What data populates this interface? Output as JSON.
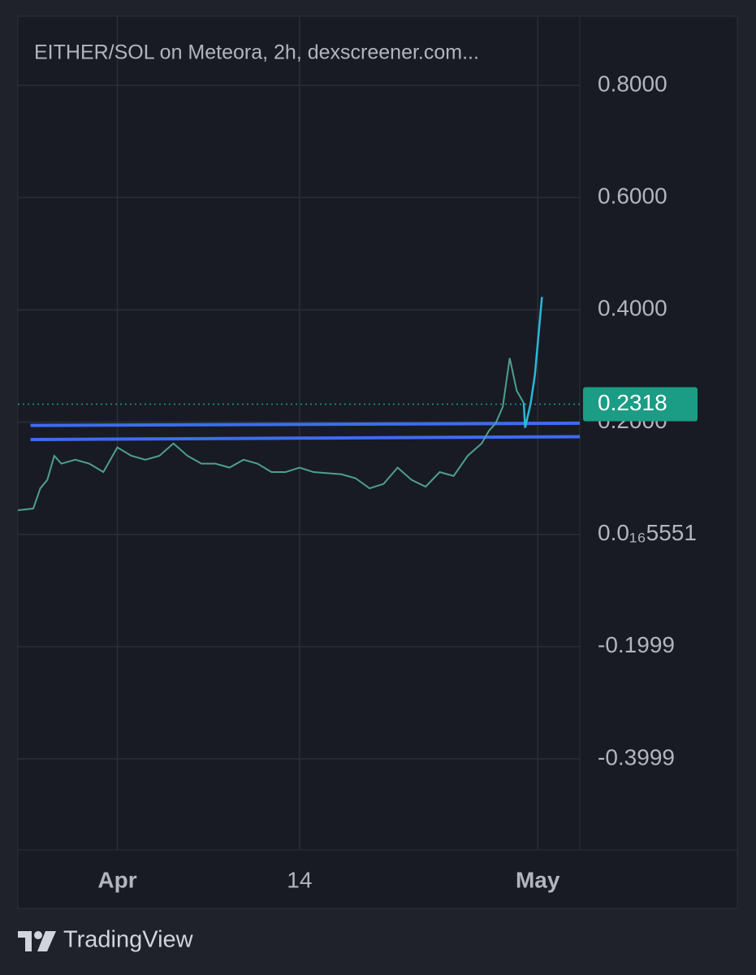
{
  "chart_data": {
    "type": "line",
    "title": "EITHER/SOL on Meteora, 2h, dexscreener.com...",
    "x": [
      -7.1,
      -6,
      -5.5,
      -5,
      -4.5,
      -4,
      -3,
      -2,
      -1,
      0,
      1,
      2,
      3,
      4,
      5,
      6,
      7,
      8,
      9,
      10,
      11,
      12,
      13,
      14,
      15,
      16,
      17,
      18,
      19,
      20,
      21,
      22,
      23,
      24,
      25,
      26,
      26.5,
      27,
      27.5,
      28,
      28.5,
      29
    ],
    "series": [
      {
        "color": "#4f9f8f",
        "values": [
          0.043,
          0.046,
          0.082,
          0.097,
          0.14,
          0.126,
          0.133,
          0.126,
          0.111,
          0.155,
          0.14,
          0.133,
          0.14,
          0.162,
          0.14,
          0.126,
          0.126,
          0.119,
          0.133,
          0.126,
          0.111,
          0.111,
          0.119,
          0.111,
          0.109,
          0.107,
          0.1,
          0.082,
          0.09,
          0.119,
          0.097,
          0.085,
          0.111,
          0.104,
          0.14,
          0.162,
          0.184,
          0.198,
          0.227,
          0.314,
          0.256,
          0.234
        ]
      }
    ],
    "recent": {
      "x": [
        29,
        29.1,
        29.5,
        29.8,
        30.3
      ],
      "color": "#2bb8d8",
      "values": [
        0.234,
        0.19,
        0.234,
        0.285,
        0.423
      ]
    },
    "levels": [
      {
        "x": [
          -6.2,
          33.0
        ],
        "values": [
          0.194,
          0.198
        ],
        "color": "#3d6cf0"
      },
      {
        "x": [
          -6.2,
          33.0
        ],
        "values": [
          0.169,
          0.174
        ],
        "color": "#3d6cf0"
      }
    ],
    "last_price": {
      "value": 0.2318,
      "label": "0.2318",
      "color": "#1b9c85"
    },
    "xlim": [
      -7.1,
      33.0
    ],
    "xticks": [
      {
        "value": 0,
        "label": "Apr"
      },
      {
        "value": 13,
        "label": "14"
      },
      {
        "value": 30,
        "label": "May"
      }
    ],
    "ylim": [
      -0.562,
      0.923
    ],
    "yticks": [
      {
        "value": 0.8,
        "label": "0.8000"
      },
      {
        "value": 0.6,
        "label": "0.6000"
      },
      {
        "value": 0.4,
        "label": "0.4000"
      },
      {
        "value": 0.2,
        "label": "0.2000"
      },
      {
        "value": 5.551e-17,
        "label": "0.0₁₆5551"
      },
      -0.1999,
      -0.3999
    ],
    "grid": true
  },
  "footer": {
    "brand": "TradingView"
  }
}
